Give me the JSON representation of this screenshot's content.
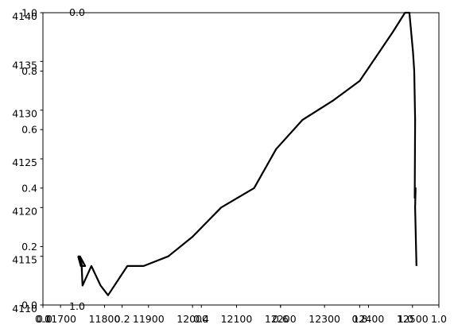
{
  "chart_data": {
    "type": "line",
    "title": "",
    "xlabel": "",
    "ylabel": "",
    "grid": false,
    "xlim": [
      11660,
      12560
    ],
    "ylim": [
      4110,
      4140
    ],
    "x_ticks": [
      {
        "value": 11700,
        "label": "11700"
      },
      {
        "value": 11800,
        "label": "11800"
      },
      {
        "value": 11900,
        "label": "11900"
      },
      {
        "value": 12000,
        "label": "12000"
      },
      {
        "value": 12100,
        "label": "12100"
      },
      {
        "value": 12200,
        "label": "12200"
      },
      {
        "value": 12300,
        "label": "12300"
      },
      {
        "value": 12400,
        "label": "12400"
      },
      {
        "value": 12500,
        "label": "12500"
      }
    ],
    "y_ticks": [
      {
        "value": 4110,
        "label": "4110"
      },
      {
        "value": 4115,
        "label": "4115"
      },
      {
        "value": 4120,
        "label": "4120"
      },
      {
        "value": 4125,
        "label": "4125"
      },
      {
        "value": 4130,
        "label": "4130"
      },
      {
        "value": 4135,
        "label": "4135"
      },
      {
        "value": 4140,
        "label": "4140"
      }
    ],
    "overlay_axis": {
      "xlim": [
        0.0,
        1.0
      ],
      "ylim": [
        0.0,
        1.0
      ],
      "x_ticks": [
        {
          "value": 0.0,
          "label": "0.0"
        },
        {
          "value": 0.2,
          "label": "0.2"
        },
        {
          "value": 0.4,
          "label": "0.4"
        },
        {
          "value": 0.6,
          "label": "0.6"
        },
        {
          "value": 0.8,
          "label": "0.8"
        },
        {
          "value": 1.0,
          "label": "1.0"
        }
      ],
      "y_ticks": [
        {
          "value": 0.0,
          "label": "0.0"
        },
        {
          "value": 0.2,
          "label": "0.2"
        },
        {
          "value": 0.4,
          "label": "0.4"
        },
        {
          "value": 0.6,
          "label": "0.6"
        },
        {
          "value": 0.8,
          "label": "0.8"
        },
        {
          "value": 1.0,
          "label": "1.0"
        }
      ]
    },
    "stray_labels": [
      {
        "text": "0.0",
        "near": "top-left"
      },
      {
        "text": "1.0",
        "near": "bottom-left"
      },
      {
        "text": "0.0",
        "near": "bottom-left"
      },
      {
        "text": "1.0",
        "near": "bottom-right"
      }
    ],
    "series": [
      {
        "color": "#000000",
        "x": [
          11740,
          11746,
          11741,
          11749,
          11744,
          11756,
          11748,
          11750,
          11770,
          11791,
          11808,
          11852,
          11889,
          11945,
          12000,
          12065,
          12140,
          12190,
          12250,
          12320,
          12380,
          12425,
          12455,
          12483,
          12493,
          12501,
          12504,
          12506,
          12505,
          12507,
          12506,
          12509
        ],
        "y": [
          4115,
          4114,
          4115,
          4114,
          4115,
          4114,
          4114,
          4112,
          4114,
          4112,
          4111,
          4114,
          4114,
          4115,
          4117,
          4120,
          4122,
          4126,
          4129,
          4131,
          4133,
          4136,
          4138,
          4140,
          4140,
          4136,
          4134,
          4129,
          4121,
          4122,
          4120,
          4114
        ]
      }
    ]
  }
}
